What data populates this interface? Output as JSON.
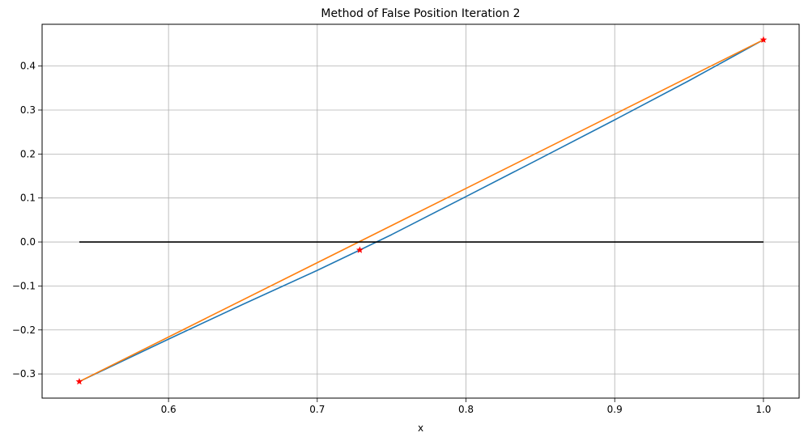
{
  "chart_data": {
    "type": "line",
    "title": "Method of False Position Iteration 2",
    "xlabel": "x",
    "ylabel": "",
    "xlim": [
      0.515,
      1.024
    ],
    "ylim": [
      -0.355,
      0.495
    ],
    "x_ticks": [
      0.6,
      0.7,
      0.8,
      0.9,
      1.0
    ],
    "x_tick_labels": [
      "0.6",
      "0.7",
      "0.8",
      "0.9",
      "1.0"
    ],
    "y_ticks": [
      0.4,
      0.3,
      0.2,
      0.1,
      0.0,
      -0.1,
      -0.2,
      -0.3
    ],
    "y_tick_labels": [
      "0.4",
      "0.3",
      "0.2",
      "0.1",
      "0.0",
      "−0.1",
      "−0.2",
      "−0.3"
    ],
    "grid": true,
    "series": [
      {
        "color": "#1f77b4",
        "x": [
          0.54,
          0.6,
          0.65,
          0.7,
          0.7286,
          0.75,
          0.8,
          0.85,
          0.9,
          0.95,
          1.0
        ],
        "y": [
          -0.3174,
          -0.2209,
          -0.1418,
          -0.0646,
          -0.0183,
          0.0167,
          0.1033,
          0.1901,
          0.2777,
          0.3669,
          0.4597
        ]
      },
      {
        "color": "#ff7f0e",
        "x": [
          0.54,
          1.0
        ],
        "y": [
          -0.3174,
          0.4597
        ]
      },
      {
        "color": "#000000",
        "x": [
          0.54,
          1.0
        ],
        "y": [
          0.0,
          0.0
        ]
      }
    ],
    "markers": {
      "color": "#ff0000",
      "symbol": "star",
      "points": [
        {
          "x": 0.54,
          "y": -0.3174
        },
        {
          "x": 0.7286,
          "y": -0.0183
        },
        {
          "x": 1.0,
          "y": 0.4597
        }
      ]
    }
  }
}
